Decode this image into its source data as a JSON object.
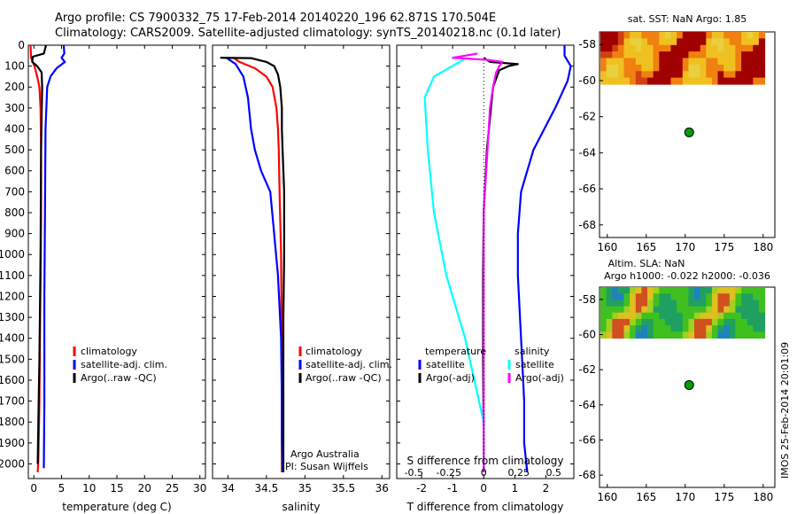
{
  "header": {
    "line1": "Argo profile: CS 7900332_75 17-Feb-2014 20140220_196 62.871S 170.504E",
    "line2": "Climatology: CARS2009. Satellite-adjusted climatology: synTS_20140218.nc (0.1d later)"
  },
  "stamp": "IMOS 25-Feb-2014 20:01:09",
  "colors": {
    "red": "#ff0000",
    "blue": "#0000ff",
    "black": "#000000",
    "cyan": "#00ffff",
    "magenta": "#ff00ff",
    "float": "#00a000"
  },
  "chart_data": [
    {
      "type": "line",
      "panel": "temperature",
      "xlabel": "temperature (deg C)",
      "ylabel": "",
      "xlim": [
        -1,
        31
      ],
      "ylim": [
        2070,
        0
      ],
      "xticks": [
        0,
        5,
        10,
        15,
        20,
        25,
        30
      ],
      "yticks": [
        0,
        100,
        200,
        300,
        400,
        500,
        600,
        700,
        800,
        900,
        1000,
        1100,
        1200,
        1300,
        1400,
        1500,
        1600,
        1700,
        1800,
        1900,
        2000
      ],
      "legend": [
        "climatology",
        "satellite-adj. clim.",
        "Argo(..raw -QC)"
      ],
      "series": [
        {
          "name": "climatology",
          "color": "red",
          "x": [
            -0.6,
            -0.5,
            0.1,
            0.6,
            1.0,
            1.2,
            1.3,
            1.3,
            1.2,
            1.1,
            1.0,
            0.8,
            0.7
          ],
          "y": [
            0,
            60,
            100,
            150,
            200,
            300,
            500,
            800,
            1100,
            1400,
            1700,
            1980,
            2040
          ]
        },
        {
          "name": "satellite-adj. clim.",
          "color": "blue",
          "x": [
            5.4,
            5.5,
            5.0,
            5.6,
            4.1,
            3.0,
            2.4,
            2.1,
            2.0,
            1.9,
            1.9,
            1.8
          ],
          "y": [
            0,
            40,
            60,
            80,
            110,
            150,
            200,
            400,
            800,
            1200,
            1700,
            2020
          ]
        },
        {
          "name": "Argo(..raw -QC)",
          "color": "black",
          "x": [
            2.2,
            1.8,
            -0.2,
            -0.3,
            0.6,
            1.4,
            1.5,
            1.3,
            1.2,
            1.0,
            0.8,
            0.7
          ],
          "y": [
            0,
            40,
            55,
            80,
            100,
            130,
            200,
            500,
            1000,
            1500,
            1800,
            2000
          ]
        }
      ]
    },
    {
      "type": "line",
      "panel": "salinity",
      "xlabel": "salinity",
      "ylabel": "",
      "xlim": [
        33.8,
        36.1
      ],
      "ylim": [
        2070,
        0
      ],
      "xticks": [
        34,
        34.5,
        35,
        35.5,
        36
      ],
      "xticklabels": [
        "34",
        "34.5",
        "35",
        "35.5",
        "36"
      ],
      "legend": [
        "climatology",
        "satellite-adj. clim.",
        "Argo(..raw -QC)"
      ],
      "notes": [
        "Argo Australia",
        "PI: Susan Wijffels"
      ],
      "series": [
        {
          "name": "climatology",
          "color": "red",
          "x": [
            34.07,
            34.15,
            34.35,
            34.5,
            34.58,
            34.63,
            34.65,
            34.66,
            34.67,
            34.69,
            34.7,
            34.7,
            34.7
          ],
          "y": [
            60,
            80,
            110,
            150,
            200,
            300,
            400,
            500,
            700,
            1000,
            1500,
            1800,
            2040
          ]
        },
        {
          "name": "satellite-adj. clim.",
          "color": "blue",
          "x": [
            33.98,
            34.1,
            34.2,
            34.26,
            34.3,
            34.35,
            34.43,
            34.55,
            34.6,
            34.65,
            34.69,
            34.7,
            34.7,
            34.71
          ],
          "y": [
            60,
            90,
            150,
            250,
            400,
            500,
            600,
            700,
            900,
            1100,
            1400,
            1700,
            1900,
            2040
          ]
        },
        {
          "name": "Argo(..raw -QC)",
          "color": "black",
          "x": [
            33.9,
            34.3,
            34.5,
            34.6,
            34.65,
            34.68,
            34.7,
            34.7,
            34.71,
            34.73,
            34.73,
            34.72,
            34.72,
            34.72,
            34.72
          ],
          "y": [
            60,
            62,
            80,
            100,
            140,
            200,
            300,
            400,
            500,
            700,
            1000,
            1300,
            1600,
            1800,
            2040
          ]
        }
      ]
    },
    {
      "type": "line",
      "panel": "difference",
      "xlabel": "T difference from climatology",
      "xlabel_top": "S difference from climatology",
      "xlim": [
        -2.8,
        2.9
      ],
      "ylim": [
        2070,
        0
      ],
      "xticks": [
        -2,
        -1,
        0,
        1,
        2
      ],
      "sticks": [
        -0.5,
        -0.25,
        0,
        0.25,
        0.5
      ],
      "sticklabels": [
        "-0.5",
        "-0.25",
        "0",
        "0.25",
        "0.5"
      ],
      "legend_headers": [
        "temperature",
        "salinity"
      ],
      "legend": [
        "satellite",
        "Argo(-adj)",
        "satellite",
        "Argo(-adj)"
      ],
      "series": [
        {
          "name": "temperature satellite",
          "color": "blue",
          "x": [
            2.6,
            2.6,
            2.8,
            2.7,
            2.3,
            1.6,
            1.2,
            1.1,
            1.1,
            1.2,
            1.3,
            1.3,
            1.4
          ],
          "y": [
            0,
            50,
            100,
            170,
            300,
            500,
            700,
            900,
            1100,
            1400,
            1700,
            1900,
            2040
          ]
        },
        {
          "name": "temperature Argo(-adj)",
          "color": "black",
          "x": [
            0,
            0.1,
            0.2,
            1.1,
            0.8,
            0.5,
            0.3,
            0.1,
            0,
            -0.02,
            -0.02,
            0,
            0
          ],
          "y": [
            60,
            70,
            80,
            90,
            100,
            120,
            200,
            500,
            800,
            1100,
            1500,
            1900,
            2040
          ]
        },
        {
          "name": "salinity satellite",
          "color": "cyan",
          "x": [
            -0.55,
            -1.6,
            -1.9,
            -1.8,
            -1.6,
            -1.2,
            -0.6,
            0,
            0
          ],
          "y": [
            60,
            150,
            250,
            500,
            800,
            1100,
            1400,
            1800,
            2040
          ]
        },
        {
          "name": "salinity Argo(-adj)",
          "color": "magenta",
          "x": [
            -0.2,
            -1.0,
            0.1,
            0.6,
            0.5,
            0.4,
            0.3,
            0.2,
            0,
            0,
            0
          ],
          "y": [
            40,
            60,
            70,
            80,
            100,
            130,
            200,
            300,
            800,
            1500,
            2040
          ]
        }
      ]
    },
    {
      "type": "heatmap",
      "panel": "sst-map",
      "title": "sat. SST: NaN Argo: 1.85",
      "xlim": [
        159,
        181.5
      ],
      "ylim": [
        -68.7,
        -57.3
      ],
      "xticks": [
        160,
        165,
        170,
        175,
        180
      ],
      "yticks": [
        -58,
        -60,
        -62,
        -64,
        -66,
        -68
      ],
      "float_position": {
        "lon": 170.504,
        "lat": -62.871
      }
    },
    {
      "type": "heatmap",
      "panel": "sla-map",
      "title": "Altim. SLA: NaN",
      "subtitle": "Argo h1000: -0.022 h2000: -0.036",
      "xlim": [
        159,
        181.5
      ],
      "ylim": [
        -68.7,
        -57.3
      ],
      "xticks": [
        160,
        165,
        170,
        175,
        180
      ],
      "yticks": [
        -58,
        -60,
        -62,
        -64,
        -66,
        -68
      ],
      "float_position": {
        "lon": 170.504,
        "lat": -62.871
      }
    }
  ]
}
